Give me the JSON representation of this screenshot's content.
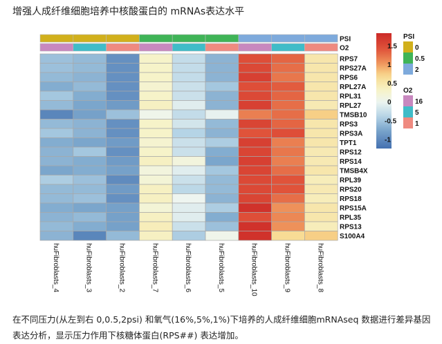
{
  "title": "增强人成纤维细胞培养中核酸蛋白的 mRNAs表达水平",
  "caption": "在不同压力(从左到右 0,0.5,2psi) 和氧气(16%,5%,1%)下培养的人成纤维细胞mRNAseq 数据进行差异基因表达分析，显示压力作用下核糖体蛋白(RPS##) 表达增加。",
  "chart_data": {
    "type": "heatmap",
    "columns": [
      "huFibroblasts_4",
      "huFibroblasts_3",
      "huFibroblasts_2",
      "huFibroblasts_7",
      "huFibroblasts_6",
      "huFibroblasts_5",
      "huFibroblasts_10",
      "huFibroblasts_9",
      "huFibroblasts_8"
    ],
    "rows": [
      "RPS7",
      "RPS27A",
      "RPS6",
      "RPL27A",
      "RPL31",
      "RPL27",
      "TMSB10",
      "RPS3",
      "RPS3A",
      "TPT1",
      "RPS12",
      "RPS14",
      "TMSB4X",
      "RPL39",
      "RPS20",
      "RPS18",
      "RPS15A",
      "RPL35",
      "RPS13",
      "S100A4"
    ],
    "values": [
      [
        -0.55,
        -0.6,
        -0.95,
        0.3,
        -0.3,
        -0.65,
        1.45,
        1.3,
        0.5
      ],
      [
        -0.55,
        -0.6,
        -0.95,
        0.3,
        -0.3,
        -0.65,
        1.5,
        1.25,
        0.5
      ],
      [
        -0.6,
        -0.65,
        -0.95,
        0.3,
        -0.3,
        -0.65,
        1.6,
        1.2,
        0.5
      ],
      [
        -0.7,
        -0.6,
        -0.95,
        0.25,
        -0.25,
        -0.5,
        1.45,
        1.35,
        0.5
      ],
      [
        -0.5,
        -0.7,
        -0.95,
        0.3,
        -0.25,
        -0.65,
        1.5,
        1.3,
        0.5
      ],
      [
        -0.6,
        -0.75,
        -0.85,
        0.35,
        -0.1,
        -0.65,
        1.6,
        1.25,
        0.45
      ],
      [
        -1.05,
        -0.8,
        -0.55,
        0.05,
        -0.3,
        -0.05,
        1.15,
        1.25,
        0.75
      ],
      [
        -0.6,
        -0.65,
        -0.95,
        0.3,
        -0.2,
        -0.6,
        1.55,
        1.3,
        0.5
      ],
      [
        -0.5,
        -0.65,
        -0.95,
        0.3,
        -0.4,
        -0.65,
        1.4,
        1.45,
        0.5
      ],
      [
        -0.7,
        -0.75,
        -0.85,
        0.25,
        -0.25,
        -0.45,
        1.6,
        1.15,
        0.5
      ],
      [
        -0.65,
        -0.5,
        -0.95,
        0.3,
        -0.25,
        -0.7,
        1.55,
        1.2,
        0.45
      ],
      [
        -0.65,
        -0.7,
        -0.85,
        0.35,
        0.15,
        -0.75,
        1.6,
        1.15,
        0.45
      ],
      [
        -0.75,
        -0.7,
        -0.8,
        0.15,
        -0.1,
        -0.5,
        1.55,
        1.25,
        0.5
      ],
      [
        -0.45,
        -0.55,
        -1.0,
        0.2,
        -0.25,
        -0.6,
        1.5,
        1.4,
        0.4
      ],
      [
        -0.6,
        -0.6,
        -0.85,
        0.35,
        -0.35,
        -0.6,
        1.5,
        1.4,
        0.45
      ],
      [
        -0.6,
        -0.55,
        -0.95,
        0.35,
        0.0,
        -0.65,
        1.55,
        1.25,
        0.4
      ],
      [
        -0.7,
        -0.75,
        -0.8,
        0.2,
        -0.1,
        -0.45,
        1.75,
        1.05,
        0.5
      ],
      [
        -0.65,
        -0.6,
        -0.8,
        0.35,
        -0.1,
        -0.7,
        1.45,
        1.1,
        0.5
      ],
      [
        -0.6,
        -0.7,
        -0.8,
        0.4,
        -0.25,
        -0.55,
        1.75,
        1.05,
        0.4
      ],
      [
        -0.65,
        -1.05,
        -0.6,
        0.35,
        -0.45,
        0.05,
        1.75,
        0.65,
        0.75
      ]
    ],
    "annotations": {
      "PSI": [
        "0",
        "0",
        "0",
        "0.5",
        "0.5",
        "0.5",
        "2",
        "2",
        "2"
      ],
      "O2": [
        "16",
        "5",
        "1",
        "16",
        "5",
        "1",
        "16",
        "5",
        "1"
      ]
    },
    "annotation_labels": [
      "PSI",
      "O2"
    ],
    "colorbar": {
      "ticks": [
        1.5,
        1,
        0.5,
        0,
        -0.5,
        -1
      ],
      "range": [
        -1.25,
        1.83
      ]
    },
    "legends": {
      "PSI": {
        "title": "PSI",
        "levels": [
          "0",
          "0.5",
          "2"
        ],
        "colors": [
          "#d1b01c",
          "#3fb457",
          "#7eaadc"
        ]
      },
      "O2": {
        "title": "O2",
        "levels": [
          "16",
          "5",
          "1"
        ],
        "colors": [
          "#c888bf",
          "#40bcc8",
          "#ef8a80"
        ]
      }
    }
  }
}
